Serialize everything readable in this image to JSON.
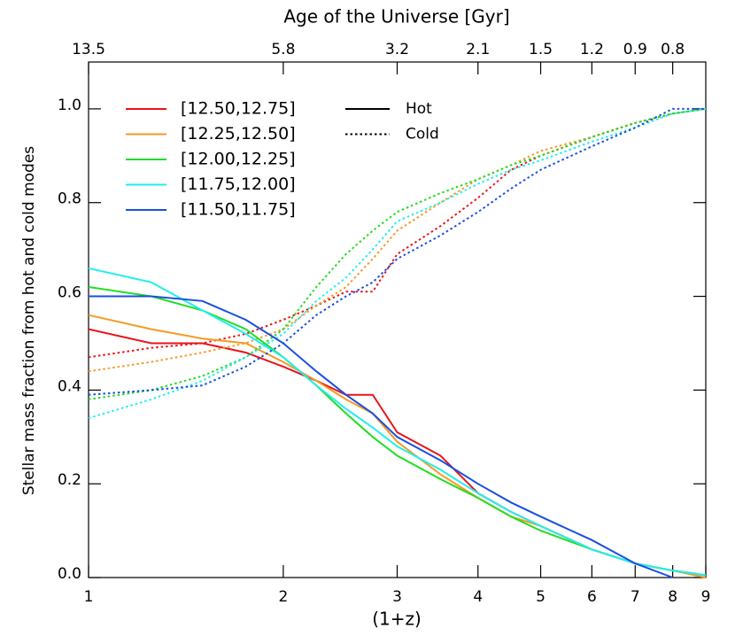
{
  "chart_data": {
    "type": "line",
    "title": "Age of the Universe [Gyr]",
    "xlabel": "(1+z)",
    "ylabel": "Stellar mass fraction from hot and cold modes",
    "x": [
      1,
      1.25,
      1.5,
      1.75,
      2,
      2.25,
      2.5,
      2.75,
      3,
      3.5,
      4,
      4.5,
      5,
      6,
      7,
      8,
      9
    ],
    "xlim": [
      1,
      9
    ],
    "xlog": true,
    "xticks": [
      1,
      2,
      3,
      4,
      5,
      6,
      7,
      8,
      9
    ],
    "x2ticks": [
      {
        "value": 1,
        "label": "13.5"
      },
      {
        "value": 2,
        "label": "5.8"
      },
      {
        "value": 3,
        "label": "3.2"
      },
      {
        "value": 4,
        "label": "2.1"
      },
      {
        "value": 5,
        "label": "1.5"
      },
      {
        "value": 6,
        "label": "1.2"
      },
      {
        "value": 7,
        "label": "0.9"
      },
      {
        "value": 8,
        "label": "0.8"
      }
    ],
    "ylim": [
      0,
      1.1
    ],
    "yticks": [
      {
        "value": 0,
        "label": "0.0"
      },
      0.2,
      0.4,
      0.6,
      0.8,
      {
        "value": 1,
        "label": "1.0"
      }
    ],
    "styles": [
      {
        "name": "Hot",
        "dash": "solid"
      },
      {
        "name": "Cold",
        "dash": "dotted"
      }
    ],
    "series": [
      {
        "name": "[12.50,12.75]",
        "color": "#e8151b",
        "values": [
          [
            0.53,
            0.5,
            0.5,
            0.48,
            0.45,
            0.42,
            0.39,
            0.39,
            0.31,
            0.26,
            0.18,
            0.14,
            0.11,
            0.06,
            0.03,
            0.015,
            0.005
          ],
          [
            0.47,
            0.49,
            0.5,
            0.52,
            0.55,
            0.58,
            0.61,
            0.61,
            0.69,
            0.75,
            0.81,
            0.87,
            0.9,
            0.94,
            0.97,
            0.99,
            1.0
          ]
        ]
      },
      {
        "name": "[12.25,12.50]",
        "color": "#f59a23",
        "values": [
          [
            0.56,
            0.53,
            0.51,
            0.5,
            0.46,
            0.42,
            0.38,
            0.35,
            0.29,
            0.22,
            0.17,
            0.13,
            0.11,
            0.06,
            0.03,
            0.015,
            0.0
          ],
          [
            0.44,
            0.46,
            0.48,
            0.5,
            0.53,
            0.58,
            0.62,
            0.68,
            0.74,
            0.8,
            0.85,
            0.88,
            0.91,
            0.94,
            0.97,
            0.99,
            1.0
          ]
        ]
      },
      {
        "name": "[12.00,12.25]",
        "color": "#22dd22",
        "values": [
          [
            0.62,
            0.6,
            0.57,
            0.53,
            0.47,
            0.41,
            0.35,
            0.3,
            0.26,
            0.21,
            0.17,
            0.13,
            0.1,
            0.06,
            0.03,
            0.015,
            0.005
          ],
          [
            0.38,
            0.4,
            0.43,
            0.47,
            0.53,
            0.62,
            0.69,
            0.74,
            0.78,
            0.82,
            0.85,
            0.88,
            0.9,
            0.94,
            0.97,
            0.99,
            1.0
          ]
        ]
      },
      {
        "name": "[11.75,12.00]",
        "color": "#22eeee",
        "values": [
          [
            0.66,
            0.63,
            0.57,
            0.52,
            0.47,
            0.41,
            0.36,
            0.32,
            0.28,
            0.23,
            0.18,
            0.14,
            0.11,
            0.06,
            0.03,
            0.015,
            0.005
          ],
          [
            0.34,
            0.38,
            0.42,
            0.47,
            0.52,
            0.59,
            0.64,
            0.7,
            0.76,
            0.8,
            0.84,
            0.87,
            0.89,
            0.93,
            0.96,
            0.99,
            1.0
          ]
        ]
      },
      {
        "name": "[11.50,11.75]",
        "color": "#1a4fe0",
        "values": [
          [
            0.6,
            0.6,
            0.59,
            0.55,
            0.5,
            0.44,
            0.39,
            0.35,
            0.3,
            0.25,
            0.2,
            0.16,
            0.13,
            0.08,
            0.03,
            0.0,
            null
          ],
          [
            0.39,
            0.4,
            0.41,
            0.45,
            0.5,
            0.56,
            0.6,
            0.63,
            0.68,
            0.73,
            0.78,
            0.83,
            0.87,
            0.92,
            0.96,
            1.0,
            1.0
          ]
        ]
      }
    ]
  }
}
